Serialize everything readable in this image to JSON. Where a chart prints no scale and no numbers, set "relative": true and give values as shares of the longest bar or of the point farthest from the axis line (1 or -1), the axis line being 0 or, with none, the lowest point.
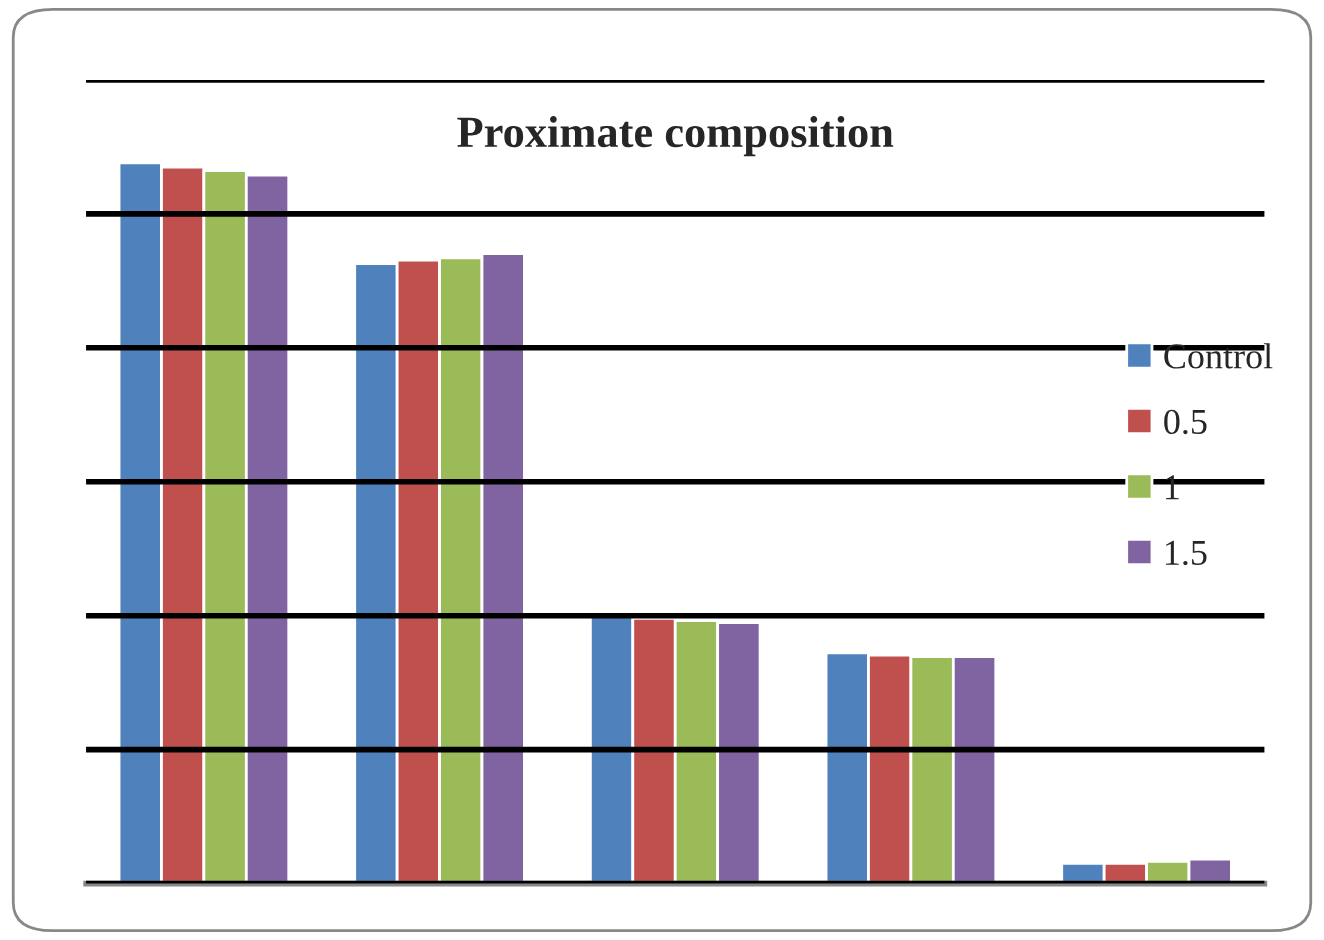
{
  "chart_data": {
    "type": "bar",
    "title": "Proximate composition",
    "relative": true,
    "categories": [
      null,
      null,
      null,
      null,
      null
    ],
    "series": [
      {
        "name": "Control",
        "color": "#4f81bd",
        "values": [
          1,
          0.86,
          0.371,
          0.32,
          0.028
        ]
      },
      {
        "name": "0.5",
        "color": "#c0504d",
        "values": [
          0.994,
          0.865,
          0.368,
          0.317,
          0.028
        ]
      },
      {
        "name": "1",
        "color": "#9bbb59",
        "values": [
          0.989,
          0.868,
          0.365,
          0.315,
          0.031
        ]
      },
      {
        "name": "1.5",
        "color": "#8064a2",
        "values": [
          0.983,
          0.874,
          0.362,
          0.315,
          0.034
        ]
      }
    ],
    "grid": "y",
    "legend": "right"
  }
}
